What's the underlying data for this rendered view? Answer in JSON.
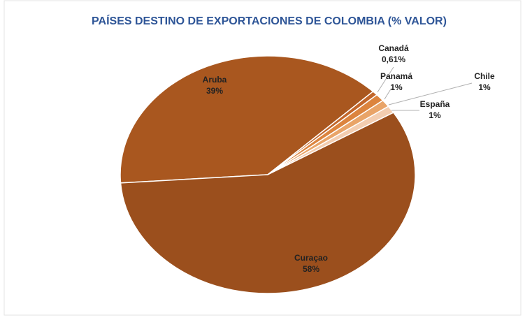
{
  "chart_data": {
    "type": "pie",
    "title": "PAÍSES DESTINO DE EXPORTACIONES DE COLOMBIA (% VALOR)",
    "categories": [
      "Aruba",
      "Canadá",
      "Panamá",
      "Chile",
      "España",
      "Curaçao"
    ],
    "values": [
      39,
      0.61,
      1,
      1,
      1,
      58
    ],
    "value_labels": [
      "39%",
      "0,61%",
      "1%",
      "1%",
      "1%",
      "58%"
    ],
    "colors": [
      "#a9571f",
      "#c2662a",
      "#dc843e",
      "#e9a468",
      "#f3cdb0",
      "#9b4f1d"
    ]
  }
}
